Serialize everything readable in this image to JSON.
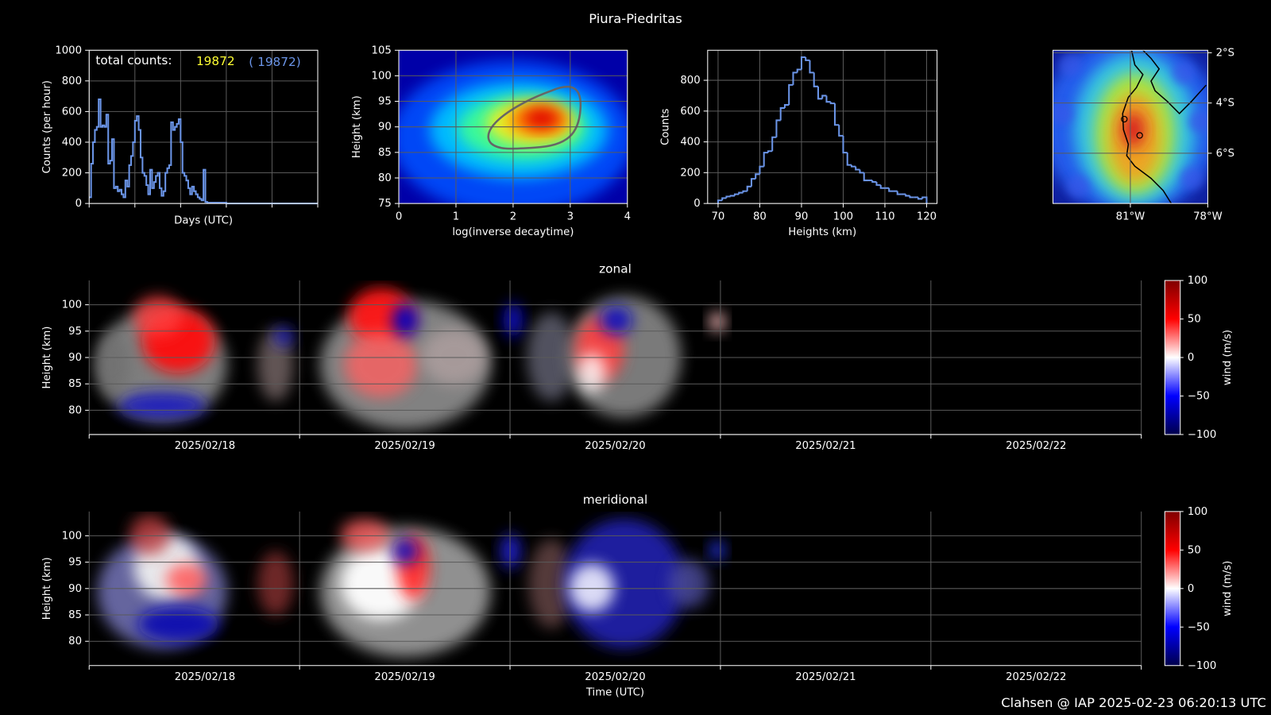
{
  "title": "Piura-Piedritas",
  "footer": "Clahsen @ IAP 2025-02-23 06:20:13 UTC",
  "chart_data": [
    {
      "type": "line",
      "drawstyle": "steps",
      "color": "#6b95e8",
      "xlabel": "Days (UTC)",
      "ylabel": "Counts (per hour)",
      "total_counts_label": "total counts:",
      "total_counts": 19872,
      "total_counts_color": "#ffff33",
      "total_counts_all": {
        "value": 19872,
        "label": "( 19872)"
      },
      "total_counts_all_color": "#6b95e8",
      "x": [
        0,
        1,
        2,
        3,
        4,
        5,
        6,
        7,
        8,
        9,
        10,
        11,
        12,
        13,
        14,
        15,
        16,
        17,
        18,
        19,
        20,
        21,
        22,
        23,
        24,
        25,
        26,
        27,
        28,
        29,
        30,
        31,
        32,
        33,
        34,
        35,
        36,
        37,
        38,
        39,
        40,
        41,
        42,
        43,
        44,
        45,
        46,
        47,
        48,
        49,
        50,
        51,
        52,
        53,
        54,
        55,
        56,
        57,
        58,
        59,
        60,
        61,
        62,
        63,
        64,
        65,
        66,
        67,
        68,
        69,
        70,
        71,
        72,
        120
      ],
      "values": [
        40,
        260,
        400,
        480,
        500,
        680,
        500,
        510,
        500,
        580,
        260,
        280,
        420,
        100,
        110,
        80,
        90,
        60,
        40,
        150,
        110,
        250,
        310,
        400,
        540,
        570,
        480,
        300,
        200,
        180,
        120,
        60,
        220,
        100,
        140,
        180,
        200,
        100,
        50,
        80,
        200,
        230,
        250,
        530,
        480,
        500,
        520,
        550,
        400,
        200,
        180,
        150,
        100,
        60,
        110,
        80,
        60,
        40,
        30,
        20,
        220,
        10,
        5,
        5,
        5,
        5,
        5,
        5,
        5,
        5,
        5,
        5,
        0,
        0
      ],
      "xlim": [
        0,
        120
      ],
      "xticks": [
        0,
        24,
        48,
        72,
        96,
        120
      ],
      "ylim": [
        0,
        1000
      ],
      "yticks": [
        0,
        200,
        400,
        600,
        800,
        1000
      ],
      "grid": true
    },
    {
      "type": "heatmap",
      "colormap": "jet",
      "xlabel": "log(inverse decaytime)",
      "ylabel": "Height (km)",
      "xlim": [
        0,
        4
      ],
      "xticks": [
        0,
        1,
        2,
        3,
        4
      ],
      "ylim": [
        75,
        105
      ],
      "yticks": [
        75,
        80,
        85,
        90,
        95,
        100,
        105
      ],
      "grid": true
    },
    {
      "type": "histogram",
      "color": "#6b95e8",
      "xlabel": "Heights (km)",
      "ylabel": "Counts",
      "bins": [
        70,
        71,
        72,
        73,
        74,
        75,
        76,
        77,
        78,
        79,
        80,
        81,
        82,
        83,
        84,
        85,
        86,
        87,
        88,
        89,
        90,
        91,
        92,
        93,
        94,
        95,
        96,
        97,
        98,
        99,
        100,
        101,
        102,
        103,
        104,
        105,
        106,
        107,
        108,
        109,
        110,
        111,
        112,
        113,
        114,
        115,
        116,
        117,
        118,
        119,
        120
      ],
      "values": [
        20,
        35,
        45,
        50,
        60,
        70,
        80,
        110,
        160,
        190,
        240,
        330,
        340,
        430,
        540,
        620,
        640,
        770,
        850,
        870,
        950,
        930,
        850,
        760,
        680,
        700,
        660,
        650,
        510,
        440,
        330,
        250,
        240,
        220,
        200,
        150,
        150,
        140,
        120,
        100,
        100,
        80,
        80,
        60,
        60,
        50,
        40,
        40,
        30,
        40
      ],
      "xlim": [
        67.5,
        122.5
      ],
      "xticks": [
        70,
        80,
        90,
        100,
        110,
        120
      ],
      "ylim": [
        0,
        995
      ],
      "yticks": [
        0,
        200,
        400,
        600,
        800
      ],
      "grid": true
    },
    {
      "type": "map",
      "xlim": [
        -84,
        -78
      ],
      "xticks": [
        {
          "value": -81,
          "label": "81°W"
        },
        {
          "value": -78,
          "label": "78°W"
        }
      ],
      "ylim": [
        -8,
        -1.9
      ],
      "yticks": [
        {
          "value": -2,
          "label": "2°S"
        },
        {
          "value": -4,
          "label": "4°S"
        },
        {
          "value": -6,
          "label": "6°S"
        }
      ],
      "grid": true
    },
    {
      "type": "wind",
      "title": "zonal",
      "ylabel": "Height (km)",
      "colormap": "seismic",
      "categories": [
        "2025/02/18",
        "2025/02/19",
        "2025/02/20",
        "2025/02/21",
        "2025/02/22"
      ],
      "ylim": [
        75.4,
        104.6
      ],
      "yticks": [
        80,
        85,
        90,
        95,
        100
      ],
      "grid": true,
      "colorbar": {
        "label": "wind (m/s)",
        "lim": [
          -100,
          100
        ],
        "ticks": [
          {
            "value": -100,
            "label": "−100"
          },
          {
            "value": -50,
            "label": "−50"
          },
          0,
          50,
          100
        ]
      }
    },
    {
      "type": "wind",
      "title": "meridional",
      "ylabel": "Height (km)",
      "xlabel": "Time (UTC)",
      "colormap": "seismic",
      "categories": [
        "2025/02/18",
        "2025/02/19",
        "2025/02/20",
        "2025/02/21",
        "2025/02/22"
      ],
      "ylim": [
        75.4,
        104.6
      ],
      "yticks": [
        80,
        85,
        90,
        95,
        100
      ],
      "grid": true,
      "colorbar": {
        "label": "wind (m/s)",
        "lim": [
          -100,
          100
        ],
        "ticks": [
          {
            "value": -100,
            "label": "−100"
          },
          {
            "value": -50,
            "label": "−50"
          },
          0,
          50,
          100
        ]
      }
    }
  ]
}
